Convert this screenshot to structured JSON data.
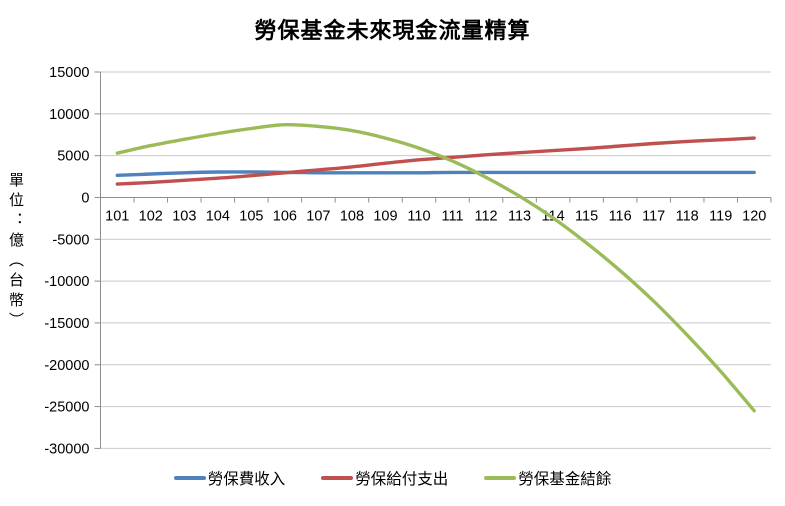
{
  "title": "勞保基金未來現金流量精算",
  "y_axis_title": "單位：億（台幣）",
  "colors": {
    "background": "#ffffff",
    "gridline": "#c9c9c9",
    "axis": "#8e8e8e",
    "text": "#000000",
    "series_income": "#4F81BD",
    "series_expense": "#C0504D",
    "series_balance": "#9BBB59"
  },
  "chart_data": {
    "type": "line",
    "title": "勞保基金未來現金流量精算",
    "xlabel": "",
    "ylabel": "單位：億（台幣）",
    "ylim": [
      -30000,
      15000
    ],
    "y_ticks": [
      15000,
      10000,
      5000,
      0,
      -5000,
      -10000,
      -15000,
      -20000,
      -25000,
      -30000
    ],
    "grid": true,
    "line_smoothing": true,
    "legend_position": "bottom",
    "categories": [
      "101",
      "102",
      "103",
      "104",
      "105",
      "106",
      "107",
      "108",
      "109",
      "110",
      "111",
      "112",
      "113",
      "114",
      "115",
      "116",
      "117",
      "118",
      "119",
      "120"
    ],
    "series": [
      {
        "name": "勞保費收入",
        "color": "#4F81BD",
        "values": [
          2650,
          2800,
          2950,
          3050,
          3050,
          3000,
          2950,
          2950,
          2950,
          2950,
          3000,
          3000,
          3000,
          3000,
          3000,
          3000,
          3000,
          3000,
          3000,
          3000
        ]
      },
      {
        "name": "勞保給付支出",
        "color": "#C0504D",
        "values": [
          1600,
          1800,
          2050,
          2300,
          2600,
          2950,
          3300,
          3650,
          4100,
          4500,
          4800,
          5100,
          5350,
          5600,
          5850,
          6150,
          6450,
          6700,
          6900,
          7100
        ]
      },
      {
        "name": "勞保基金結餘",
        "color": "#9BBB59",
        "values": [
          5300,
          6200,
          6950,
          7650,
          8250,
          8700,
          8500,
          8000,
          7100,
          5900,
          4350,
          2400,
          150,
          -2450,
          -5450,
          -8750,
          -12400,
          -16450,
          -20800,
          -25500
        ]
      }
    ]
  }
}
